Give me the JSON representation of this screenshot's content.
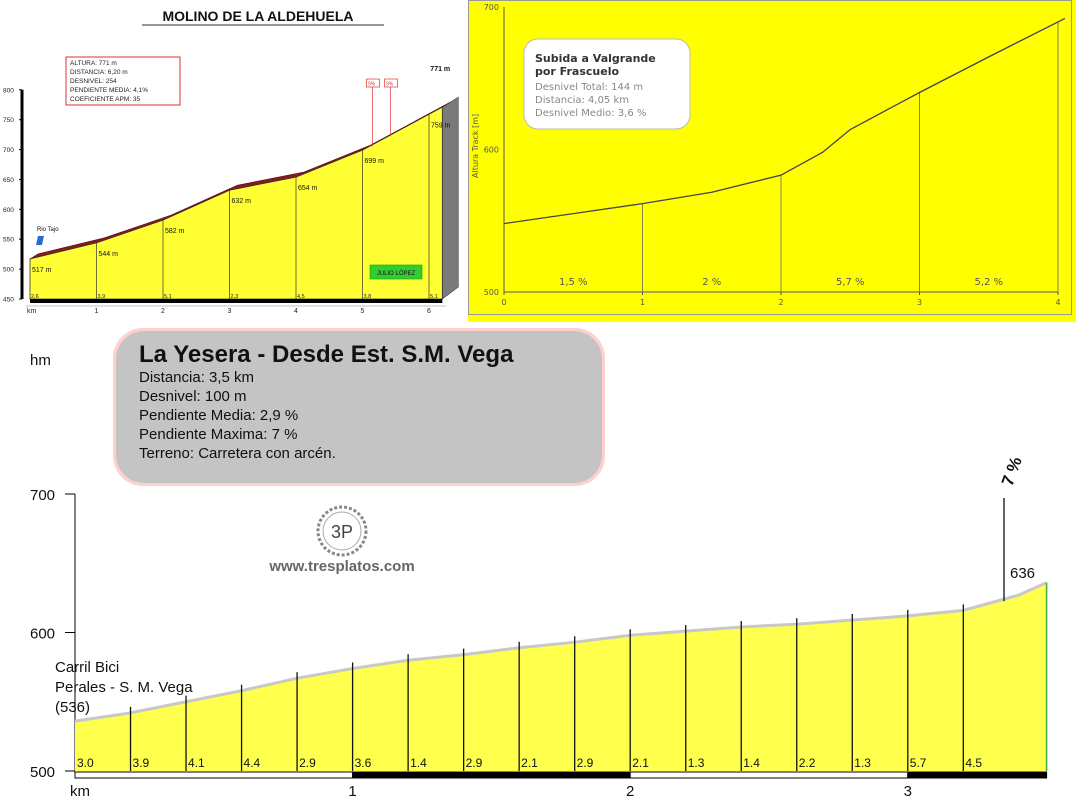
{
  "chart_data": [
    {
      "type": "area",
      "title": "MOLINO DE LA ALDEHUELA",
      "xlabel": "km",
      "x_ticks": [
        "1",
        "2",
        "3",
        "4",
        "5",
        "6"
      ],
      "y_ticks": [
        "450",
        "500",
        "550",
        "600",
        "650",
        "700",
        "750",
        "800"
      ],
      "ylim": [
        450,
        800
      ],
      "info_box": [
        "ALTURA: 771 m",
        "DISTANCIA: 6,20 m",
        "DESNIVEL: 254",
        "PENDIENTE MEDIA: 4,1%",
        "COEFICIENTE APM: 35"
      ],
      "points": [
        {
          "km": 0,
          "alt": 517,
          "label": "517 m"
        },
        {
          "km": 1,
          "alt": 544,
          "label": "544 m"
        },
        {
          "km": 2,
          "alt": 582,
          "label": "582 m"
        },
        {
          "km": 3,
          "alt": 632,
          "label": "632 m"
        },
        {
          "km": 4,
          "alt": 654,
          "label": "654 m"
        },
        {
          "km": 5,
          "alt": 699,
          "label": "699 m"
        },
        {
          "km": 6,
          "alt": 759,
          "label": "759 m"
        },
        {
          "km": 6.2,
          "alt": 771,
          "label": "771 m"
        }
      ],
      "segment_grades": [
        "2,6",
        "3,9",
        "5,1",
        "2,3",
        "4,5",
        "3,8",
        "5,1"
      ],
      "peak_grades": [
        "9%",
        "9%"
      ],
      "start_label": "Rio Tajo",
      "author": "JULIO LÓPEZ"
    },
    {
      "type": "line",
      "ylabel": "Altura Track [m]",
      "ylim": [
        500,
        700
      ],
      "xlim": [
        0,
        4
      ],
      "x_ticks": [
        "0",
        "1",
        "2",
        "3",
        "4"
      ],
      "y_ticks": [
        "500",
        "600",
        "700"
      ],
      "info_title": "Subida a Valgrande por Frascuelo",
      "info_lines": [
        "Desnivel Total: 144 m",
        "Distancia: 4,05 km",
        "Desnivel Medio: 3,6 %"
      ],
      "x": [
        0,
        0.5,
        1,
        1.5,
        2,
        2.3,
        2.5,
        3,
        3.5,
        4.05
      ],
      "y": [
        548,
        555,
        562,
        570,
        582,
        598,
        614,
        640,
        665,
        692
      ],
      "segment_grades": [
        "1,5 %",
        "2 %",
        "5,7 %",
        "5,2 %"
      ]
    },
    {
      "type": "area",
      "title": "La Yesera - Desde Est. S.M. Vega",
      "info_lines": [
        "Distancia: 3,5 km",
        "Desnivel: 100 m",
        "Pendiente Media: 2,9 %",
        "Pendiente Maxima: 7 %",
        "Terreno: Carretera con arcén."
      ],
      "ylabel": "hm",
      "xlabel": "km",
      "ylim": [
        500,
        700
      ],
      "x_ticks": [
        "1",
        "2",
        "3"
      ],
      "y_ticks": [
        "500",
        "600",
        "700"
      ],
      "km": [
        0,
        0.2,
        0.4,
        0.6,
        0.8,
        1.0,
        1.2,
        1.4,
        1.6,
        1.8,
        2.0,
        2.2,
        2.4,
        2.6,
        2.8,
        3.0,
        3.2,
        3.4,
        3.5
      ],
      "alt": [
        536,
        542,
        550,
        558,
        567,
        574,
        580,
        584,
        589,
        593,
        598,
        601,
        604,
        606,
        609,
        612,
        616,
        627,
        636
      ],
      "segment_grades": [
        "3.0",
        "3.9",
        "4.1",
        "4.4",
        "2.9",
        "3.6",
        "1.4",
        "2.9",
        "2.1",
        "2.9",
        "2.1",
        "1.3",
        "1.4",
        "2.2",
        "1.3",
        "5.7",
        "4.5"
      ],
      "start_label": [
        "Carril Bici",
        "Perales - S. M. Vega",
        "(536)"
      ],
      "end_label": "636",
      "max_grade": "7 %",
      "logo": "3P",
      "website": "www.tresplatos.com"
    }
  ]
}
